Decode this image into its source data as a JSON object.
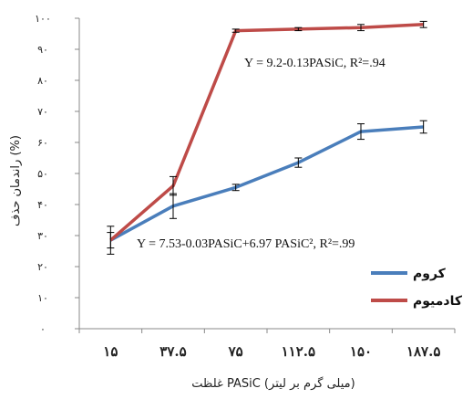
{
  "chart_data": {
    "type": "line",
    "categories": [
      "۱۵",
      "۳۷.۵",
      "۷۵",
      "۱۱۲.۵",
      "۱۵۰",
      "۱۸۷.۵"
    ],
    "y_ticks": [
      "۰",
      "۱۰",
      "۲۰",
      "۳۰",
      "۴۰",
      "۵۰",
      "۶۰",
      "۷۰",
      "۸۰",
      "۹۰",
      "۱۰۰"
    ],
    "ylim": [
      0,
      100
    ],
    "xlabel": "غلظت PASiC (میلی گرم بر لیتر)",
    "ylabel": "راندمان حذف (%)",
    "grid": false,
    "legend_position": "right",
    "series": [
      {
        "name": "کروم",
        "color": "#4A7EBB",
        "values": [
          28.5,
          39.5,
          45.5,
          53.5,
          63.5,
          65
        ],
        "errors": [
          2.5,
          4,
          1,
          1.5,
          2.5,
          2
        ]
      },
      {
        "name": "کادمیوم",
        "color": "#BE4B48",
        "values": [
          28.5,
          46,
          96,
          96.5,
          97,
          98
        ],
        "errors": [
          4.5,
          3,
          0.5,
          0.5,
          1,
          1
        ]
      }
    ],
    "annotations": [
      "Y = 9.2-0.13PASiC, R²=.94",
      "Y = 7.53-0.03PASiC+6.97 PASiC², R²=.99"
    ]
  }
}
